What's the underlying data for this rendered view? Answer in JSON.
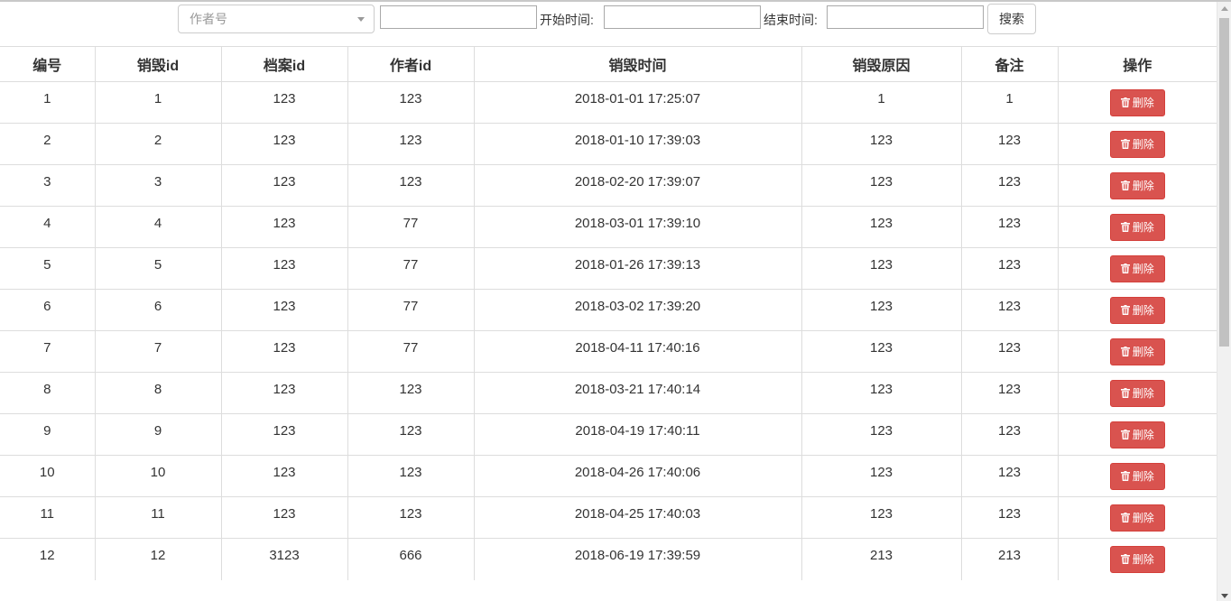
{
  "toolbar": {
    "author_select_placeholder": "作者号",
    "keyword_input_value": "",
    "start_time_label": "开始时间:",
    "start_time_value": "",
    "end_time_label": "结束时间:",
    "end_time_value": "",
    "search_button_label": "搜索"
  },
  "table": {
    "headers": [
      "编号",
      "销毁id",
      "档案id",
      "作者id",
      "销毁时间",
      "销毁原因",
      "备注",
      "操作"
    ],
    "delete_label": "删除",
    "delete_icon": "trash-icon",
    "rows": [
      {
        "no": "1",
        "destroy_id": "1",
        "archive_id": "123",
        "author_id": "123",
        "time": "2018-01-01 17:25:07",
        "reason": "1",
        "note": "1"
      },
      {
        "no": "2",
        "destroy_id": "2",
        "archive_id": "123",
        "author_id": "123",
        "time": "2018-01-10 17:39:03",
        "reason": "123",
        "note": "123"
      },
      {
        "no": "3",
        "destroy_id": "3",
        "archive_id": "123",
        "author_id": "123",
        "time": "2018-02-20 17:39:07",
        "reason": "123",
        "note": "123"
      },
      {
        "no": "4",
        "destroy_id": "4",
        "archive_id": "123",
        "author_id": "77",
        "time": "2018-03-01 17:39:10",
        "reason": "123",
        "note": "123"
      },
      {
        "no": "5",
        "destroy_id": "5",
        "archive_id": "123",
        "author_id": "77",
        "time": "2018-01-26 17:39:13",
        "reason": "123",
        "note": "123"
      },
      {
        "no": "6",
        "destroy_id": "6",
        "archive_id": "123",
        "author_id": "77",
        "time": "2018-03-02 17:39:20",
        "reason": "123",
        "note": "123"
      },
      {
        "no": "7",
        "destroy_id": "7",
        "archive_id": "123",
        "author_id": "77",
        "time": "2018-04-11 17:40:16",
        "reason": "123",
        "note": "123"
      },
      {
        "no": "8",
        "destroy_id": "8",
        "archive_id": "123",
        "author_id": "123",
        "time": "2018-03-21 17:40:14",
        "reason": "123",
        "note": "123"
      },
      {
        "no": "9",
        "destroy_id": "9",
        "archive_id": "123",
        "author_id": "123",
        "time": "2018-04-19 17:40:11",
        "reason": "123",
        "note": "123"
      },
      {
        "no": "10",
        "destroy_id": "10",
        "archive_id": "123",
        "author_id": "123",
        "time": "2018-04-26 17:40:06",
        "reason": "123",
        "note": "123"
      },
      {
        "no": "11",
        "destroy_id": "11",
        "archive_id": "123",
        "author_id": "123",
        "time": "2018-04-25 17:40:03",
        "reason": "123",
        "note": "123"
      },
      {
        "no": "12",
        "destroy_id": "12",
        "archive_id": "3123",
        "author_id": "666",
        "time": "2018-06-19 17:39:59",
        "reason": "213",
        "note": "213"
      }
    ]
  },
  "colors": {
    "delete_button": "#d9534f",
    "border": "#dddddd"
  }
}
